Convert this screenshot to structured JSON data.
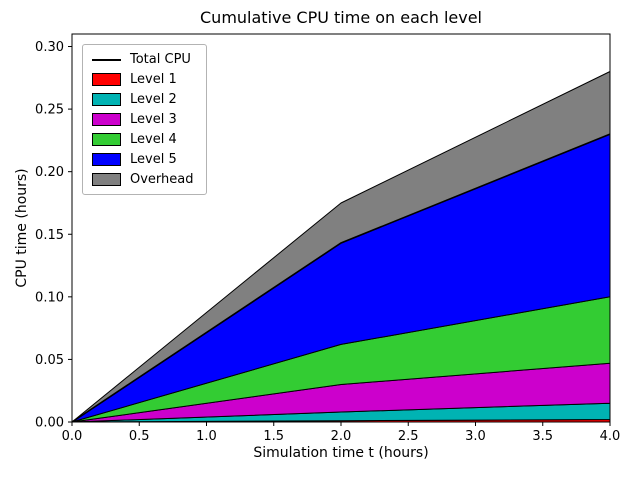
{
  "figure": {
    "title": "Cumulative CPU time on each level",
    "xlabel": "Simulation time t (hours)",
    "ylabel": "CPU time (hours)"
  },
  "chart_data": {
    "type": "area",
    "stacked": true,
    "title": "Cumulative CPU time on each level",
    "xlabel": "Simulation time t (hours)",
    "ylabel": "CPU time (hours)",
    "xlim": [
      0.0,
      4.0
    ],
    "ylim": [
      0.0,
      0.31
    ],
    "xticks": [
      0.0,
      0.5,
      1.0,
      1.5,
      2.0,
      2.5,
      3.0,
      3.5,
      4.0
    ],
    "yticks": [
      0.0,
      0.05,
      0.1,
      0.15,
      0.2,
      0.25,
      0.3
    ],
    "grid": false,
    "legend_position": "upper left",
    "x": [
      0.0,
      2.0,
      4.0
    ],
    "series": [
      {
        "name": "Level 1",
        "color": "#ff0000",
        "values": [
          0.0,
          0.001,
          0.002
        ]
      },
      {
        "name": "Level 2",
        "color": "#00b3b3",
        "values": [
          0.0,
          0.007,
          0.013
        ]
      },
      {
        "name": "Level 3",
        "color": "#cc00cc",
        "values": [
          0.0,
          0.022,
          0.032
        ]
      },
      {
        "name": "Level 4",
        "color": "#33cc33",
        "values": [
          0.0,
          0.032,
          0.053
        ]
      },
      {
        "name": "Level 5",
        "color": "#0000ff",
        "values": [
          0.0,
          0.081,
          0.13
        ]
      },
      {
        "name": "Overhead",
        "color": "#808080",
        "values": [
          0.0,
          0.032,
          0.05
        ]
      }
    ],
    "total_line": {
      "name": "Total CPU",
      "color": "#000000",
      "values": [
        0.0,
        0.143,
        0.23
      ]
    },
    "legend": [
      "Total CPU",
      "Level 1",
      "Level 2",
      "Level 3",
      "Level 4",
      "Level 5",
      "Overhead"
    ]
  }
}
